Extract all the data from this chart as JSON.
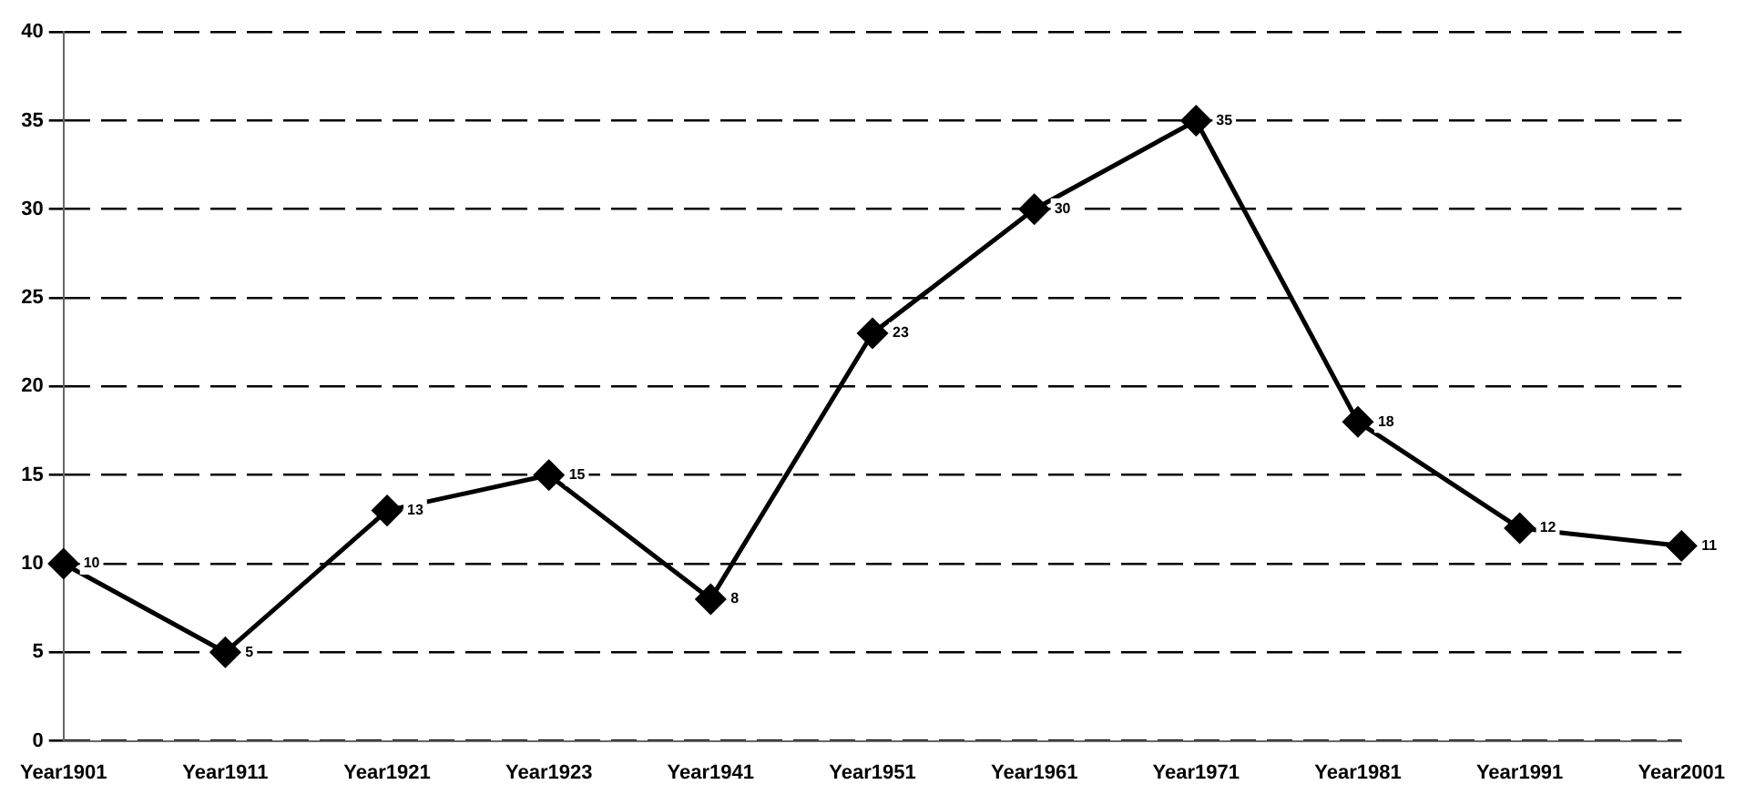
{
  "chart_data": {
    "type": "line",
    "categories": [
      "Year1901",
      "Year1911",
      "Year1921",
      "Year1923",
      "Year1941",
      "Year1951",
      "Year1961",
      "Year1971",
      "Year1981",
      "Year1991",
      "Year2001"
    ],
    "series": [
      {
        "color": "#000000",
        "values": [
          10,
          5,
          13,
          15,
          8,
          23,
          30,
          35,
          18,
          12,
          11
        ]
      }
    ],
    "ylim": [
      0,
      40
    ],
    "yticks": [
      0,
      5,
      10,
      15,
      20,
      25,
      30,
      35,
      40
    ],
    "grid": "y",
    "legend": false,
    "marker": "diamond",
    "line_style": "solid",
    "data_labels": true
  }
}
